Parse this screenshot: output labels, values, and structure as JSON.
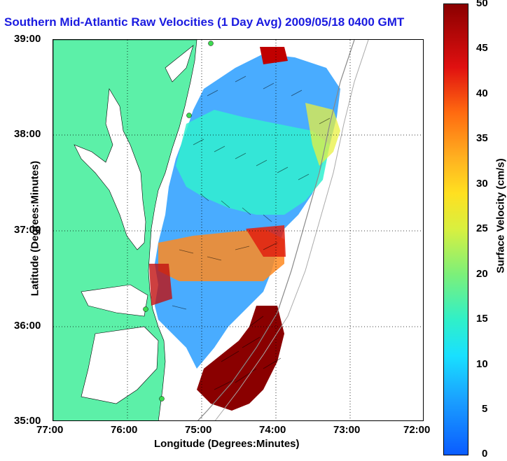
{
  "title": "Southern Mid-Atlantic Raw Velocities (1 Day Avg) 2009/05/18 0400 GMT",
  "x_axis": {
    "label": "Longitude (Degrees:Minutes)",
    "ticks": [
      "77:00",
      "76:00",
      "75:00",
      "74:00",
      "73:00",
      "72:00"
    ]
  },
  "y_axis": {
    "label": "Latitude (Degrees:Minutes)",
    "ticks": [
      "39:00",
      "38:00",
      "37:00",
      "36:00",
      "35:00"
    ]
  },
  "colorbar": {
    "label": "Surface Velocity (cm/s)",
    "ticks": [
      "50",
      "45",
      "40",
      "35",
      "30",
      "25",
      "20",
      "15",
      "10",
      "5",
      "0"
    ]
  },
  "colors": {
    "land": "#5cf0a8",
    "title": "#1a1ae0",
    "grid": "#000000"
  }
}
